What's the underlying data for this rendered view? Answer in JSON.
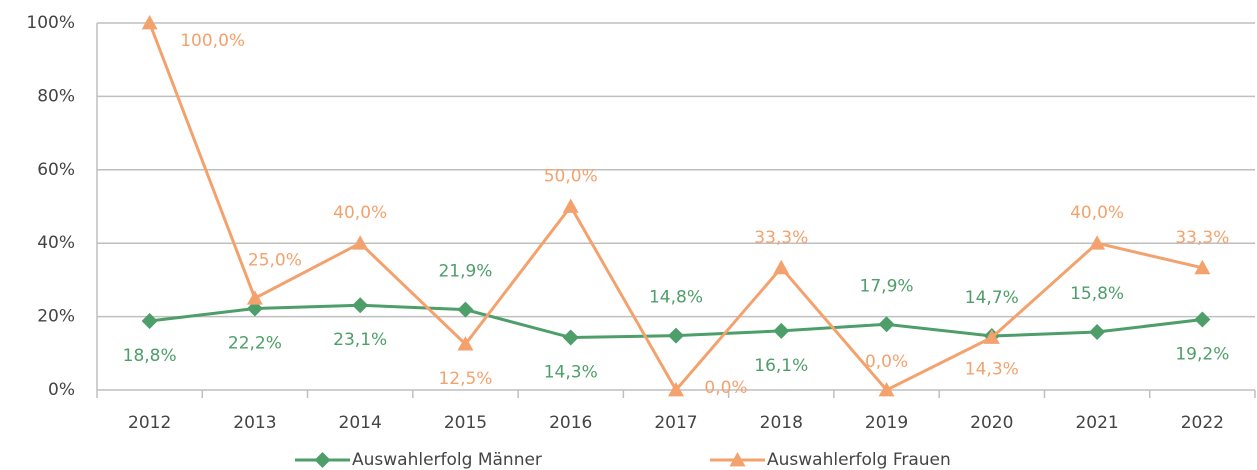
{
  "chart_data": {
    "type": "line",
    "categories": [
      "2012",
      "2013",
      "2014",
      "2015",
      "2016",
      "2017",
      "2018",
      "2019",
      "2020",
      "2021",
      "2022"
    ],
    "series": [
      {
        "name": "Auswahlerfolg Männer",
        "color": "#4e9e6a",
        "marker": "diamond",
        "values": [
          18.8,
          22.2,
          23.1,
          21.9,
          14.3,
          14.8,
          16.1,
          17.9,
          14.7,
          15.8,
          19.2
        ],
        "value_labels": [
          "18,8%",
          "22,2%",
          "23,1%",
          "21,9%",
          "14,3%",
          "14,8%",
          "16,1%",
          "17,9%",
          "14,7%",
          "15,8%",
          "19,2%"
        ]
      },
      {
        "name": "Auswahlerfolg Frauen",
        "color": "#f4a26d",
        "marker": "triangle",
        "values": [
          100,
          25,
          40,
          12.5,
          50,
          0,
          33.3,
          0,
          14.3,
          40,
          33.3
        ],
        "value_labels": [
          "100,0%",
          "25,0%",
          "40,0%",
          "12,5%",
          "50,0%",
          "0,0%",
          "33,3%",
          "0,0%",
          "14,3%",
          "40,0%",
          "33,3%"
        ]
      }
    ],
    "ylim": [
      0,
      100
    ],
    "yticks": [
      {
        "value": 0,
        "label": "0%"
      },
      {
        "value": 20,
        "label": "20%"
      },
      {
        "value": 40,
        "label": "40%"
      },
      {
        "value": 60,
        "label": "60%"
      },
      {
        "value": 80,
        "label": "80%"
      },
      {
        "value": 100,
        "label": "100%"
      }
    ],
    "grid": true,
    "legend": "bottom"
  }
}
